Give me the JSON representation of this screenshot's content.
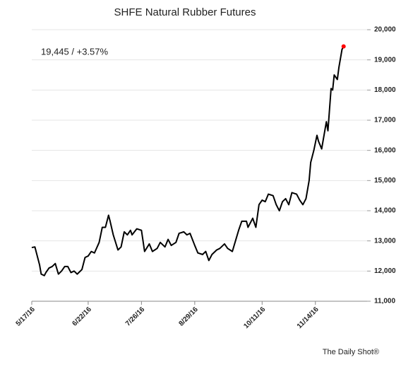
{
  "chart_data": {
    "type": "line",
    "title": "SHFE Natural Rubber Futures",
    "annotation": "19,445  /  +3.57%",
    "source": "The Daily Shot®",
    "x": [
      "2016-05-17",
      "2016-05-19",
      "2016-05-21",
      "2016-05-22",
      "2016-05-23",
      "2016-05-25",
      "2016-05-26",
      "2016-05-28",
      "2016-05-30",
      "2016-06-01",
      "2016-06-03",
      "2016-06-05",
      "2016-06-07",
      "2016-06-09",
      "2016-06-11",
      "2016-06-13",
      "2016-06-15",
      "2016-06-18",
      "2016-06-20",
      "2016-06-22",
      "2016-06-24",
      "2016-06-26",
      "2016-06-29",
      "2016-07-01",
      "2016-07-03",
      "2016-07-05",
      "2016-07-06",
      "2016-07-08",
      "2016-07-11",
      "2016-07-13",
      "2016-07-15",
      "2016-07-17",
      "2016-07-19",
      "2016-07-20",
      "2016-07-23",
      "2016-07-26",
      "2016-07-28",
      "2016-07-31",
      "2016-08-02",
      "2016-08-05",
      "2016-08-07",
      "2016-08-10",
      "2016-08-12",
      "2016-08-14",
      "2016-08-17",
      "2016-08-19",
      "2016-08-22",
      "2016-08-24",
      "2016-08-26",
      "2016-08-29",
      "2016-08-31",
      "2016-09-03",
      "2016-09-05",
      "2016-09-07",
      "2016-09-09",
      "2016-09-12",
      "2016-09-14",
      "2016-09-17",
      "2016-09-19",
      "2016-09-22",
      "2016-09-24",
      "2016-09-26",
      "2016-09-28",
      "2016-10-01",
      "2016-10-02",
      "2016-10-05",
      "2016-10-07",
      "2016-10-09",
      "2016-10-11",
      "2016-10-13",
      "2016-10-15",
      "2016-10-18",
      "2016-10-20",
      "2016-10-22",
      "2016-10-24",
      "2016-10-26",
      "2016-10-28",
      "2016-10-30",
      "2016-11-02",
      "2016-11-04",
      "2016-11-06",
      "2016-11-08",
      "2016-11-10",
      "2016-11-11",
      "2016-11-13",
      "2016-11-15",
      "2016-11-16",
      "2016-11-18",
      "2016-11-20",
      "2016-11-21",
      "2016-11-22",
      "2016-11-24",
      "2016-11-25",
      "2016-11-26",
      "2016-11-28",
      "2016-11-29",
      "2016-12-01",
      "2016-12-02"
    ],
    "series": [
      {
        "name": "SHFE Natural Rubber Futures",
        "color": "#000000",
        "values": [
          12780,
          12800,
          12400,
          12200,
          11900,
          11850,
          11950,
          12100,
          12150,
          12250,
          11900,
          12000,
          12150,
          12150,
          11950,
          12000,
          11900,
          12050,
          12450,
          12500,
          12650,
          12600,
          12950,
          13450,
          13450,
          13850,
          13650,
          13200,
          12700,
          12800,
          13300,
          13200,
          13350,
          13200,
          13400,
          13350,
          12650,
          12900,
          12650,
          12750,
          12950,
          12800,
          13050,
          12850,
          12950,
          13250,
          13300,
          13200,
          13250,
          12850,
          12600,
          12550,
          12650,
          12350,
          12550,
          12700,
          12750,
          12900,
          12750,
          12650,
          13000,
          13350,
          13650,
          13650,
          13450,
          13750,
          13450,
          14200,
          14350,
          14300,
          14550,
          14500,
          14200,
          14000,
          14300,
          14400,
          14200,
          14600,
          14550,
          14350,
          14200,
          14400,
          15000,
          15600,
          16000,
          16500,
          16300,
          16050,
          16650,
          16950,
          16650,
          18050,
          18000,
          18500,
          18350,
          18750,
          19350,
          19445
        ]
      }
    ],
    "highlight_last_color": "#ff0000",
    "xlim": [
      "2016-05-17",
      "2016-12-17"
    ],
    "xticks": [
      {
        "value": "2016-05-17",
        "label": "5/17/16"
      },
      {
        "value": "2016-06-22",
        "label": "6/22/16"
      },
      {
        "value": "2016-07-26",
        "label": "7/26/16"
      },
      {
        "value": "2016-08-29",
        "label": "8/29/16"
      },
      {
        "value": "2016-10-11",
        "label": "10/11/16"
      },
      {
        "value": "2016-11-14",
        "label": "11/14/16"
      }
    ],
    "ylim": [
      11000,
      20000
    ],
    "yticks": [
      {
        "value": 11000,
        "label": "11,000"
      },
      {
        "value": 12000,
        "label": "12,000"
      },
      {
        "value": 13000,
        "label": "13,000"
      },
      {
        "value": 14000,
        "label": "14,000"
      },
      {
        "value": 15000,
        "label": "15,000"
      },
      {
        "value": 16000,
        "label": "16,000"
      },
      {
        "value": 17000,
        "label": "17,000"
      },
      {
        "value": 18000,
        "label": "18,000"
      },
      {
        "value": 19000,
        "label": "19,000"
      },
      {
        "value": 20000,
        "label": "20,000"
      }
    ],
    "grid": true
  }
}
